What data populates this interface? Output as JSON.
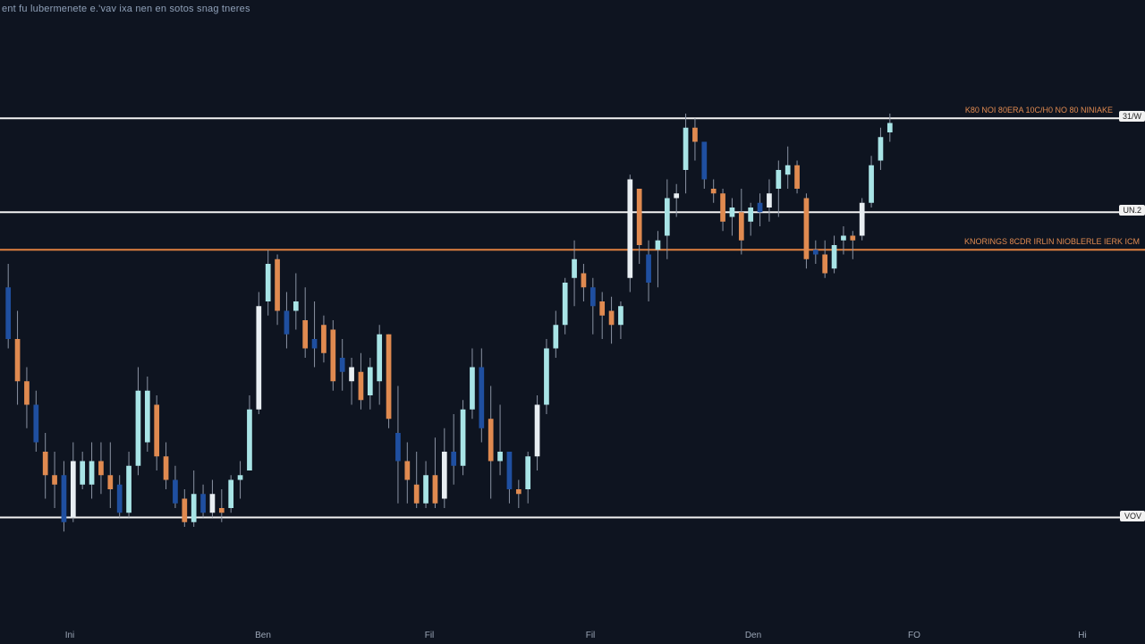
{
  "chart_data": {
    "type": "candlestick",
    "title": "ent fu lubermenete e.'vav ixa nen en sotos snag tneres",
    "xlabel": "",
    "ylabel": "",
    "x_ticks": [
      "Ini",
      "Ben",
      "Fil",
      "Fil",
      "Den",
      "FO",
      "Hi"
    ],
    "ylim": [
      0,
      100
    ],
    "grid": false,
    "levels": [
      {
        "name": "resistance-top",
        "value": 91,
        "color": "#f2f2f2",
        "tag": "31/W",
        "label": "K80 NOI 80ERA 10C/H0 NO 80 NINIAKE"
      },
      {
        "name": "mid-level",
        "value": 71,
        "color": "#f2f2f2",
        "tag": "UN.2",
        "label": ""
      },
      {
        "name": "orange-level",
        "value": 63,
        "color": "#e0803f",
        "tag": "",
        "label": "KNORINGS 8CDR IRLIN NIOBLERLE IERK ICM"
      },
      {
        "name": "support-bottom",
        "value": 6,
        "color": "#f2f2f2",
        "tag": "VOV",
        "label": ""
      }
    ],
    "series": [
      {
        "values": [
          {
            "o": 55,
            "h": 60,
            "l": 42,
            "c": 44
          },
          {
            "o": 44,
            "h": 50,
            "l": 30,
            "c": 35
          },
          {
            "o": 35,
            "h": 38,
            "l": 25,
            "c": 30
          },
          {
            "o": 30,
            "h": 33,
            "l": 20,
            "c": 22
          },
          {
            "o": 20,
            "h": 24,
            "l": 10,
            "c": 15
          },
          {
            "o": 15,
            "h": 20,
            "l": 8,
            "c": 13
          },
          {
            "o": 15,
            "h": 18,
            "l": 3,
            "c": 5
          },
          {
            "o": 6,
            "h": 22,
            "l": 5,
            "c": 18
          },
          {
            "o": 13,
            "h": 20,
            "l": 12,
            "c": 18
          },
          {
            "o": 13,
            "h": 22,
            "l": 10,
            "c": 18
          },
          {
            "o": 18,
            "h": 22,
            "l": 11,
            "c": 15
          },
          {
            "o": 15,
            "h": 22,
            "l": 8,
            "c": 12
          },
          {
            "o": 13,
            "h": 15,
            "l": 6,
            "c": 7
          },
          {
            "o": 7,
            "h": 20,
            "l": 6,
            "c": 17
          },
          {
            "o": 17,
            "h": 38,
            "l": 15,
            "c": 33
          },
          {
            "o": 22,
            "h": 36,
            "l": 20,
            "c": 33
          },
          {
            "o": 30,
            "h": 32,
            "l": 16,
            "c": 19
          },
          {
            "o": 19,
            "h": 22,
            "l": 12,
            "c": 14
          },
          {
            "o": 14,
            "h": 17,
            "l": 8,
            "c": 9
          },
          {
            "o": 10,
            "h": 12,
            "l": 4,
            "c": 5
          },
          {
            "o": 5,
            "h": 16,
            "l": 4,
            "c": 11
          },
          {
            "o": 11,
            "h": 13,
            "l": 6,
            "c": 7
          },
          {
            "o": 7,
            "h": 14,
            "l": 6,
            "c": 11
          },
          {
            "o": 8,
            "h": 12,
            "l": 5,
            "c": 7
          },
          {
            "o": 8,
            "h": 15,
            "l": 7,
            "c": 14
          },
          {
            "o": 14,
            "h": 18,
            "l": 10,
            "c": 15
          },
          {
            "o": 16,
            "h": 32,
            "l": 16,
            "c": 29
          },
          {
            "o": 29,
            "h": 54,
            "l": 28,
            "c": 51
          },
          {
            "o": 52,
            "h": 63,
            "l": 49,
            "c": 60
          },
          {
            "o": 61,
            "h": 62,
            "l": 47,
            "c": 50
          },
          {
            "o": 50,
            "h": 54,
            "l": 42,
            "c": 45
          },
          {
            "o": 50,
            "h": 58,
            "l": 46,
            "c": 52
          },
          {
            "o": 48,
            "h": 55,
            "l": 40,
            "c": 42
          },
          {
            "o": 44,
            "h": 52,
            "l": 38,
            "c": 42
          },
          {
            "o": 47,
            "h": 49,
            "l": 39,
            "c": 41
          },
          {
            "o": 46,
            "h": 48,
            "l": 33,
            "c": 35
          },
          {
            "o": 40,
            "h": 44,
            "l": 33,
            "c": 37
          },
          {
            "o": 35,
            "h": 40,
            "l": 30,
            "c": 38
          },
          {
            "o": 37,
            "h": 41,
            "l": 29,
            "c": 31
          },
          {
            "o": 32,
            "h": 40,
            "l": 29,
            "c": 38
          },
          {
            "o": 35,
            "h": 47,
            "l": 30,
            "c": 45
          },
          {
            "o": 45,
            "h": 45,
            "l": 25,
            "c": 27
          },
          {
            "o": 24,
            "h": 34,
            "l": 9,
            "c": 18
          },
          {
            "o": 18,
            "h": 22,
            "l": 9,
            "c": 14
          },
          {
            "o": 13,
            "h": 20,
            "l": 8,
            "c": 9
          },
          {
            "o": 9,
            "h": 18,
            "l": 8,
            "c": 15
          },
          {
            "o": 15,
            "h": 23,
            "l": 8,
            "c": 9
          },
          {
            "o": 10,
            "h": 25,
            "l": 8,
            "c": 20
          },
          {
            "o": 20,
            "h": 28,
            "l": 13,
            "c": 17
          },
          {
            "o": 17,
            "h": 31,
            "l": 15,
            "c": 29
          },
          {
            "o": 29,
            "h": 42,
            "l": 27,
            "c": 38
          },
          {
            "o": 38,
            "h": 42,
            "l": 22,
            "c": 25
          },
          {
            "o": 27,
            "h": 34,
            "l": 10,
            "c": 18
          },
          {
            "o": 18,
            "h": 30,
            "l": 15,
            "c": 20
          },
          {
            "o": 20,
            "h": 20,
            "l": 9,
            "c": 12
          },
          {
            "o": 12,
            "h": 14,
            "l": 8,
            "c": 11
          },
          {
            "o": 12,
            "h": 20,
            "l": 9,
            "c": 19
          },
          {
            "o": 19,
            "h": 32,
            "l": 16,
            "c": 30
          },
          {
            "o": 30,
            "h": 44,
            "l": 28,
            "c": 42
          },
          {
            "o": 42,
            "h": 50,
            "l": 40,
            "c": 47
          },
          {
            "o": 47,
            "h": 57,
            "l": 45,
            "c": 56
          },
          {
            "o": 57,
            "h": 65,
            "l": 51,
            "c": 61
          },
          {
            "o": 58,
            "h": 60,
            "l": 52,
            "c": 55
          },
          {
            "o": 55,
            "h": 57,
            "l": 45,
            "c": 51
          },
          {
            "o": 52,
            "h": 54,
            "l": 44,
            "c": 49
          },
          {
            "o": 50,
            "h": 53,
            "l": 43,
            "c": 47
          },
          {
            "o": 47,
            "h": 52,
            "l": 44,
            "c": 51
          },
          {
            "o": 57,
            "h": 79,
            "l": 54,
            "c": 78
          },
          {
            "o": 76,
            "h": 76,
            "l": 60,
            "c": 64
          },
          {
            "o": 62,
            "h": 65,
            "l": 52,
            "c": 56
          },
          {
            "o": 63,
            "h": 67,
            "l": 55,
            "c": 65
          },
          {
            "o": 66,
            "h": 78,
            "l": 61,
            "c": 74
          },
          {
            "o": 74,
            "h": 77,
            "l": 70,
            "c": 75
          },
          {
            "o": 80,
            "h": 92,
            "l": 75,
            "c": 89
          },
          {
            "o": 89,
            "h": 91,
            "l": 82,
            "c": 86
          },
          {
            "o": 86,
            "h": 86,
            "l": 76,
            "c": 78
          },
          {
            "o": 76,
            "h": 78,
            "l": 73,
            "c": 75
          },
          {
            "o": 75,
            "h": 76,
            "l": 67,
            "c": 69
          },
          {
            "o": 70,
            "h": 74,
            "l": 66,
            "c": 72
          },
          {
            "o": 71,
            "h": 76,
            "l": 62,
            "c": 65
          },
          {
            "o": 69,
            "h": 73,
            "l": 66,
            "c": 72
          },
          {
            "o": 73,
            "h": 75,
            "l": 68,
            "c": 71
          },
          {
            "o": 72,
            "h": 78,
            "l": 69,
            "c": 75
          },
          {
            "o": 76,
            "h": 82,
            "l": 70,
            "c": 80
          },
          {
            "o": 79,
            "h": 85,
            "l": 76,
            "c": 81
          },
          {
            "o": 81,
            "h": 82,
            "l": 75,
            "c": 76
          },
          {
            "o": 74,
            "h": 75,
            "l": 59,
            "c": 61
          },
          {
            "o": 63,
            "h": 65,
            "l": 60,
            "c": 62
          },
          {
            "o": 62,
            "h": 65,
            "l": 57,
            "c": 58
          },
          {
            "o": 59,
            "h": 66,
            "l": 58,
            "c": 64
          },
          {
            "o": 65,
            "h": 68,
            "l": 62,
            "c": 66
          },
          {
            "o": 66,
            "h": 67,
            "l": 61,
            "c": 65
          },
          {
            "o": 66,
            "h": 74,
            "l": 65,
            "c": 73
          },
          {
            "o": 73,
            "h": 83,
            "l": 72,
            "c": 81
          },
          {
            "o": 82,
            "h": 89,
            "l": 80,
            "c": 87
          },
          {
            "o": 88,
            "h": 92,
            "l": 86,
            "c": 90
          }
        ]
      }
    ]
  },
  "colors": {
    "background": "#0e1420",
    "bull_light": "#a8e4e6",
    "bull_white": "#e8eef2",
    "bear_blue": "#1f4fa0",
    "bear_orange": "#e08a50"
  }
}
